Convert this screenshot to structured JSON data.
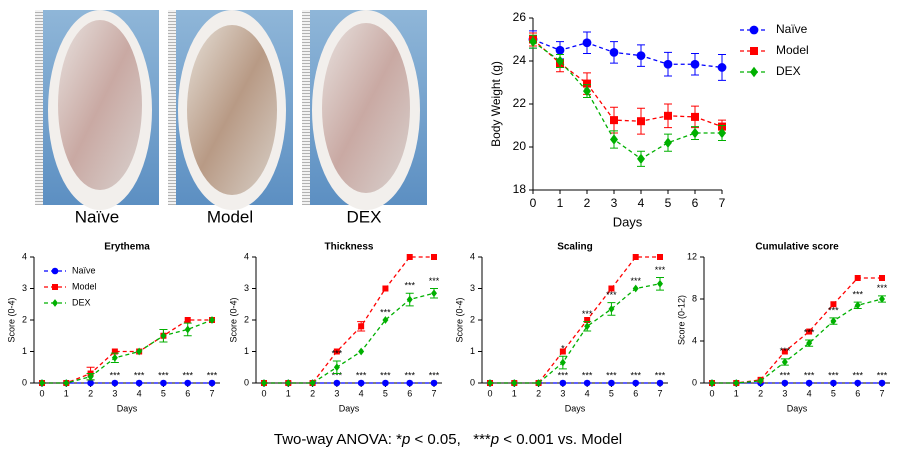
{
  "photos": {
    "labels": [
      "Naïve",
      "Model",
      "DEX"
    ]
  },
  "chart_data": [
    {
      "type": "line",
      "ylabel": "Body Weight (g)",
      "xlabel": "Days",
      "x": [
        0,
        1,
        2,
        3,
        4,
        5,
        6,
        7
      ],
      "xlim": [
        0,
        7
      ],
      "xticks": [
        0,
        1,
        2,
        3,
        4,
        5,
        6,
        7
      ],
      "ylim": [
        18,
        26
      ],
      "yticks": [
        18,
        20,
        22,
        24,
        26
      ],
      "legend": "outside right",
      "series": [
        {
          "name": "Naïve",
          "color": "#0000ff",
          "marker": "circle",
          "values": [
            25,
            24.5,
            24.85,
            24.4,
            24.25,
            23.85,
            23.85,
            23.7
          ],
          "errors": [
            0.4,
            0.4,
            0.5,
            0.5,
            0.5,
            0.55,
            0.5,
            0.6
          ]
        },
        {
          "name": "Model",
          "color": "#ff0000",
          "marker": "square",
          "values": [
            25,
            23.9,
            22.95,
            21.25,
            21.2,
            21.45,
            21.4,
            20.95
          ],
          "errors": [
            0.3,
            0.4,
            0.5,
            0.6,
            0.6,
            0.55,
            0.5,
            0.3
          ]
        },
        {
          "name": "DEX",
          "color": "#00b000",
          "marker": "diamond",
          "values": [
            24.9,
            24.0,
            22.6,
            20.35,
            19.45,
            20.2,
            20.65,
            20.65
          ],
          "errors": [
            0.3,
            0.3,
            0.3,
            0.4,
            0.35,
            0.4,
            0.3,
            0.35
          ]
        }
      ]
    },
    {
      "type": "line",
      "title": "Erythema",
      "ylabel": "Score (0-4)",
      "xlabel": "Days",
      "x": [
        0,
        1,
        2,
        3,
        4,
        5,
        6,
        7
      ],
      "xlim": [
        0,
        7
      ],
      "xticks": [
        0,
        1,
        2,
        3,
        4,
        5,
        6,
        7
      ],
      "ylim": [
        0,
        4
      ],
      "yticks": [
        0,
        1,
        2,
        3,
        4
      ],
      "legend": "upper left",
      "series": [
        {
          "name": "Naïve",
          "color": "#0000ff",
          "marker": "circle",
          "values": [
            0,
            0,
            0,
            0,
            0,
            0,
            0,
            0
          ],
          "sig_labels": [
            null,
            null,
            null,
            "***",
            "***",
            "***",
            "***",
            "***"
          ]
        },
        {
          "name": "Model",
          "color": "#ff0000",
          "marker": "square",
          "values": [
            0,
            0,
            0.3,
            1,
            1,
            1.5,
            2,
            2
          ],
          "errors": [
            0,
            0,
            0.2,
            0,
            0,
            0.2,
            0,
            0
          ]
        },
        {
          "name": "DEX",
          "color": "#00b000",
          "marker": "diamond",
          "values": [
            0,
            0,
            0.2,
            0.8,
            1,
            1.5,
            1.7,
            2
          ],
          "errors": [
            0,
            0,
            0.1,
            0.15,
            0,
            0.2,
            0.2,
            0
          ]
        }
      ]
    },
    {
      "type": "line",
      "title": "Thickness",
      "ylabel": "Score (0-4)",
      "xlabel": "Days",
      "x": [
        0,
        1,
        2,
        3,
        4,
        5,
        6,
        7
      ],
      "xlim": [
        0,
        7
      ],
      "xticks": [
        0,
        1,
        2,
        3,
        4,
        5,
        6,
        7
      ],
      "ylim": [
        0,
        4
      ],
      "yticks": [
        0,
        1,
        2,
        3,
        4
      ],
      "series": [
        {
          "color": "#0000ff",
          "marker": "circle",
          "values": [
            0,
            0,
            0,
            0,
            0,
            0,
            0,
            0
          ],
          "sig_labels": [
            null,
            null,
            null,
            "***",
            "***",
            "***",
            "***",
            "***"
          ]
        },
        {
          "color": "#ff0000",
          "marker": "square",
          "values": [
            0,
            0,
            0,
            1,
            1.8,
            3,
            4,
            4
          ],
          "errors": [
            0,
            0,
            0,
            0,
            0.15,
            0,
            0,
            0
          ]
        },
        {
          "color": "#00b000",
          "marker": "diamond",
          "values": [
            0,
            0,
            0,
            0.5,
            1,
            2,
            2.65,
            2.85
          ],
          "errors": [
            0,
            0,
            0,
            0.2,
            0,
            0,
            0.2,
            0.15
          ],
          "sig_labels": [
            null,
            null,
            null,
            "***",
            null,
            "***",
            "***",
            "***"
          ]
        }
      ]
    },
    {
      "type": "line",
      "title": "Scaling",
      "ylabel": "Score (0-4)",
      "xlabel": "Days",
      "x": [
        0,
        1,
        2,
        3,
        4,
        5,
        6,
        7
      ],
      "xlim": [
        0,
        7
      ],
      "xticks": [
        0,
        1,
        2,
        3,
        4,
        5,
        6,
        7
      ],
      "ylim": [
        0,
        4
      ],
      "yticks": [
        0,
        1,
        2,
        3,
        4
      ],
      "series": [
        {
          "color": "#0000ff",
          "marker": "circle",
          "values": [
            0,
            0,
            0,
            0,
            0,
            0,
            0,
            0
          ],
          "sig_labels": [
            null,
            null,
            null,
            "***",
            "***",
            "***",
            "***",
            "***"
          ]
        },
        {
          "color": "#ff0000",
          "marker": "square",
          "values": [
            0,
            0,
            0,
            1,
            2,
            3,
            4,
            4
          ]
        },
        {
          "color": "#00b000",
          "marker": "diamond",
          "values": [
            0,
            0,
            0,
            0.65,
            1.8,
            2.35,
            3,
            3.15
          ],
          "errors": [
            0,
            0,
            0,
            0.2,
            0.15,
            0.2,
            0,
            0.2
          ],
          "sig_labels": [
            null,
            null,
            null,
            "*",
            "***",
            "***",
            "***",
            "***"
          ]
        }
      ]
    },
    {
      "type": "line",
      "title": "Cumulative score",
      "ylabel": "Score (0-12)",
      "xlabel": "Days",
      "x": [
        0,
        1,
        2,
        3,
        4,
        5,
        6,
        7
      ],
      "xlim": [
        0,
        7
      ],
      "xticks": [
        0,
        1,
        2,
        3,
        4,
        5,
        6,
        7
      ],
      "ylim": [
        0,
        12
      ],
      "yticks": [
        0,
        4,
        8,
        12
      ],
      "series": [
        {
          "color": "#0000ff",
          "marker": "circle",
          "values": [
            0,
            0,
            0,
            0,
            0,
            0,
            0,
            0
          ],
          "sig_labels": [
            null,
            null,
            null,
            "***",
            "***",
            "***",
            "***",
            "***"
          ]
        },
        {
          "color": "#ff0000",
          "marker": "square",
          "values": [
            0,
            0,
            0.3,
            3,
            4.9,
            7.5,
            10,
            10
          ]
        },
        {
          "color": "#00b000",
          "marker": "diamond",
          "values": [
            0,
            0,
            0.2,
            2,
            3.8,
            5.9,
            7.4,
            8
          ],
          "errors": [
            0,
            0,
            0,
            0.3,
            0.3,
            0.3,
            0.3,
            0.3
          ],
          "sig_labels": [
            null,
            null,
            null,
            "***",
            "***",
            "***",
            "***",
            "***"
          ]
        }
      ]
    }
  ],
  "footnote": [
    "Two-way ANOVA: *",
    "p",
    " < 0.05,   ***",
    "p",
    " < 0.001 vs. Model"
  ]
}
